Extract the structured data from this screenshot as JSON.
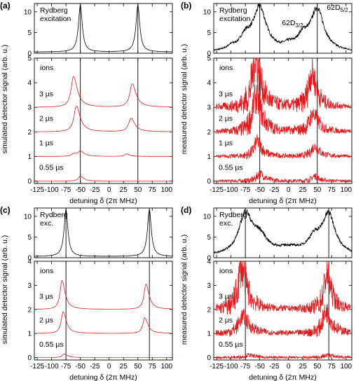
{
  "figure": {
    "common_xlabel": "detuning δ (2π MHz)",
    "x_ticks": [
      -125,
      -100,
      -75,
      -50,
      -25,
      0,
      25,
      50,
      75,
      100
    ],
    "x_range": [
      -130,
      110
    ],
    "trace_colors": {
      "rydberg": "#000000",
      "ions": "#e31a1c"
    }
  },
  "chart_data": [
    {
      "panel": "a",
      "panel_label": "(a)",
      "type": "line",
      "kind": "simulated",
      "ylabel": "simulated detector signal (arb. u.)",
      "xlabel": "detuning δ (2π MHz)",
      "top": {
        "label_lines": [
          "Rydberg",
          "excitation"
        ],
        "ylim": [
          0,
          12
        ],
        "yticks": [
          0,
          5,
          10
        ],
        "resonances": [
          {
            "center": -50,
            "width": 4,
            "height": 11.3
          },
          {
            "center": 50,
            "width": 4,
            "height": 11.3
          }
        ],
        "background": 0.3,
        "noise": 0
      },
      "bottom": {
        "label": "ions",
        "ylim": [
          -0.1,
          5
        ],
        "yticks": [
          0,
          1,
          2,
          3,
          4,
          5
        ],
        "series": [
          {
            "name": "0.55 µs",
            "offset": 0,
            "peaks": [
              {
                "center": -50,
                "width": 4,
                "height": 0.2
              }
            ]
          },
          {
            "name": "1 µs",
            "offset": 1,
            "peaks": [
              {
                "center": -50,
                "width": 5,
                "height": 0.2
              },
              {
                "center": -62,
                "width": 4,
                "height": 0.1
              },
              {
                "center": 30,
                "width": 4,
                "height": 0.1
              }
            ]
          },
          {
            "name": "2 µs",
            "offset": 2,
            "peaks": [
              {
                "center": -57,
                "width": 5,
                "height": 1.05
              },
              {
                "center": 38,
                "width": 5,
                "height": 0.55
              }
            ]
          },
          {
            "name": "3 µs",
            "offset": 3,
            "peaks": [
              {
                "center": -62,
                "width": 5,
                "height": 1.25
              },
              {
                "center": 40,
                "width": 5,
                "height": 0.95
              }
            ]
          }
        ]
      },
      "vlines": [
        -50,
        50
      ],
      "annotations": []
    },
    {
      "panel": "b",
      "panel_label": "(b)",
      "type": "line",
      "kind": "measured",
      "ylabel": "measured detector signal (arb. u.)",
      "xlabel": "detuning δ (2π MHz)",
      "top": {
        "label_lines": [
          "Rydberg",
          "excitation"
        ],
        "ylim": [
          0,
          12
        ],
        "yticks": [
          0,
          5,
          10
        ],
        "resonances": [
          {
            "center": -50,
            "width": 14,
            "height": 10.3
          },
          {
            "center": 50,
            "width": 14,
            "height": 10
          },
          {
            "center": -75,
            "width": 12,
            "height": 3
          },
          {
            "center": 25,
            "width": 12,
            "height": 3
          },
          {
            "center": 0,
            "width": 10,
            "height": 1
          },
          {
            "center": -100,
            "width": 8,
            "height": 0.8
          }
        ],
        "background": 0.2,
        "noise": 0.6
      },
      "bottom": {
        "label": "ions",
        "ylim": [
          -0.1,
          5
        ],
        "yticks": [
          0,
          1,
          2,
          3,
          4,
          5
        ],
        "series": [
          {
            "name": "0.55 µs",
            "offset": 0,
            "peaks": [
              {
                "center": -50,
                "width": 6,
                "height": 0.3
              },
              {
                "center": 45,
                "width": 5,
                "height": 0.2
              }
            ]
          },
          {
            "name": "1 µs",
            "offset": 1,
            "peaks": [
              {
                "center": -55,
                "width": 6,
                "height": 0.6
              },
              {
                "center": 45,
                "width": 6,
                "height": 0.4
              }
            ]
          },
          {
            "name": "2 µs",
            "offset": 2,
            "peaks": [
              {
                "center": -57,
                "width": 7,
                "height": 1.4
              },
              {
                "center": 42,
                "width": 7,
                "height": 0.7
              }
            ]
          },
          {
            "name": "3 µs",
            "offset": 3,
            "peaks": [
              {
                "center": -58,
                "width": 7,
                "height": 1.9
              },
              {
                "center": 40,
                "width": 6,
                "height": 1.4
              }
            ]
          }
        ]
      },
      "vlines": [
        -50,
        50
      ],
      "annotations": [
        {
          "base": "62D",
          "sub": "3/2",
          "x": 7,
          "y": 6.8
        },
        {
          "base": "62D",
          "sub": "5/2",
          "x": 85,
          "y": 10.5
        }
      ]
    },
    {
      "panel": "c",
      "panel_label": "(c)",
      "type": "line",
      "kind": "simulated",
      "ylabel": "simulated detector signal (arb. u.)",
      "xlabel": "detuning δ (2π MHz)",
      "top": {
        "label_lines": [
          "Rydberg",
          "exc."
        ],
        "ylim": [
          0,
          12
        ],
        "yticks": [
          0,
          5,
          10
        ],
        "resonances": [
          {
            "center": -75,
            "width": 4,
            "height": 11.3
          },
          {
            "center": 70,
            "width": 4,
            "height": 11.3
          }
        ],
        "background": 0.3,
        "noise": 0
      },
      "bottom": {
        "label": "ions",
        "ylim": [
          -0.1,
          4
        ],
        "yticks": [
          0,
          1,
          2,
          3,
          4
        ],
        "series": [
          {
            "name": "0.55 µs",
            "offset": 0,
            "peaks": [
              {
                "center": -78,
                "width": 4,
                "height": 0.15
              }
            ]
          },
          {
            "name": "2 µs",
            "offset": 1,
            "peaks": [
              {
                "center": -80,
                "width": 4,
                "height": 0.9
              },
              {
                "center": 62,
                "width": 4,
                "height": 0.65
              }
            ]
          },
          {
            "name": "3 µs",
            "offset": 2,
            "peaks": [
              {
                "center": -82,
                "width": 4,
                "height": 1.2
              },
              {
                "center": 64,
                "width": 4,
                "height": 1.05
              }
            ]
          }
        ]
      },
      "vlines": [
        -75,
        70
      ],
      "annotations": []
    },
    {
      "panel": "d",
      "panel_label": "(d)",
      "type": "line",
      "kind": "measured",
      "ylabel": "measured detector signal (arb. u.)",
      "xlabel": "detuning δ (2π MHz)",
      "top": {
        "label_lines": [
          "Rydberg",
          "exc."
        ],
        "ylim": [
          0,
          12
        ],
        "yticks": [
          0,
          5,
          10
        ],
        "resonances": [
          {
            "center": -75,
            "width": 14,
            "height": 9.5
          },
          {
            "center": 70,
            "width": 14,
            "height": 9.5
          },
          {
            "center": -50,
            "width": 16,
            "height": 4
          },
          {
            "center": 45,
            "width": 14,
            "height": 3.5
          },
          {
            "center": 0,
            "width": 25,
            "height": 1.5
          }
        ],
        "background": 0.3,
        "noise": 0.6
      },
      "bottom": {
        "label": "ions",
        "ylim": [
          -0.1,
          4
        ],
        "yticks": [
          0,
          1,
          2,
          3,
          4
        ],
        "series": [
          {
            "name": "0.55 µs",
            "offset": 0,
            "peaks": [
              {
                "center": -70,
                "width": 8,
                "height": 0.1
              },
              {
                "center": 68,
                "width": 8,
                "height": 0.1
              }
            ]
          },
          {
            "name": "2 µs",
            "offset": 1,
            "peaks": [
              {
                "center": -80,
                "width": 8,
                "height": 0.7
              },
              {
                "center": 65,
                "width": 7,
                "height": 0.9
              }
            ]
          },
          {
            "name": "3 µs",
            "offset": 2,
            "peaks": [
              {
                "center": -82,
                "width": 7,
                "height": 1.7
              },
              {
                "center": 66,
                "width": 6,
                "height": 1.4
              }
            ]
          }
        ]
      },
      "vlines": [
        -75,
        70
      ],
      "annotations": []
    }
  ]
}
